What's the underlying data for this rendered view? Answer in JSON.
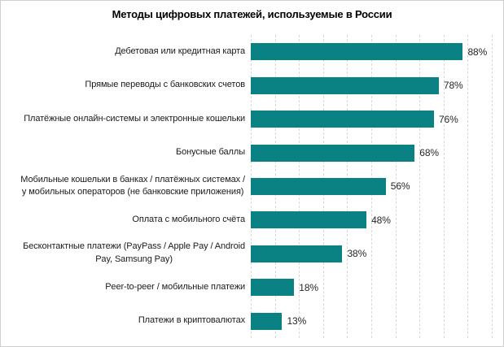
{
  "chart_data": {
    "type": "bar",
    "orientation": "horizontal",
    "title": "Методы цифровых платежей, используемые в России",
    "categories": [
      "Дебетовая или кредитная карта",
      "Прямые переводы с банковских счетов",
      "Платёжные онлайн-системы и электронные кошельки",
      "Бонусные баллы",
      "Мобильные кошельки в банках / платёжных системах /\nу мобильных операторов (не банковские приложения)",
      "Оплата с мобильного счёта",
      "Бесконтактные платежи (PayPass / Apple Pay / Android\nPay, Samsung Pay)",
      "Peer-to-peer / мобильные платежи",
      "Платежи в криптовалютах"
    ],
    "values": [
      88,
      78,
      76,
      68,
      56,
      48,
      38,
      18,
      13
    ],
    "value_labels": [
      "88%",
      "78%",
      "76%",
      "68%",
      "56%",
      "48%",
      "38%",
      "18%",
      "13%"
    ],
    "xlabel": "",
    "ylabel": "",
    "xlim": [
      0,
      100
    ],
    "gridline_step": 10,
    "grid": "vertical-dashed",
    "legend": "none",
    "colors": {
      "bar": "#0a8183",
      "gridline": "#d9d9d9",
      "frame_border": "#cfcfcf",
      "title_text": "#000000",
      "label_text": "#1a1a1a",
      "value_text": "#262626",
      "background": "#ffffff"
    }
  }
}
